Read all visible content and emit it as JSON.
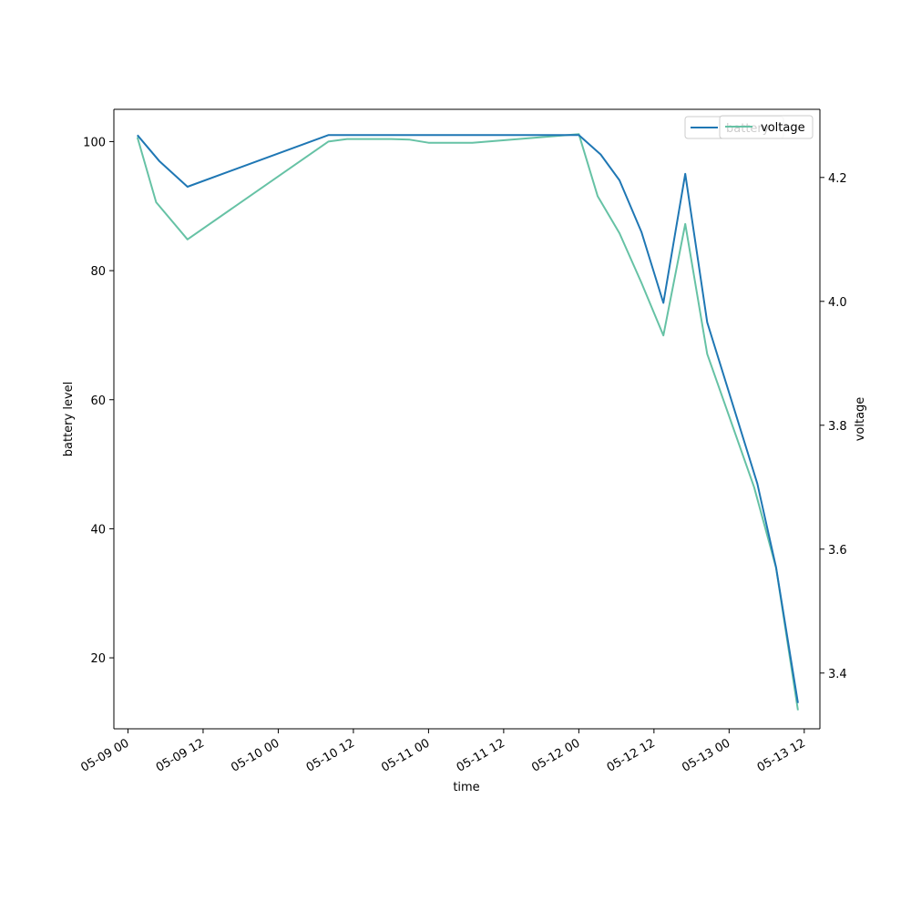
{
  "chart_data": {
    "type": "line",
    "xlabel": "time",
    "ylabel_left": "battery level",
    "ylabel_right": "voltage",
    "x_ticks": [
      "05-09 00",
      "05-09 12",
      "05-10 00",
      "05-10 12",
      "05-11 00",
      "05-11 12",
      "05-12 00",
      "05-12 12",
      "05-13 00",
      "05-13 12"
    ],
    "xlim": [
      "2021-05-08T21:45",
      "2021-05-13T14:30"
    ],
    "ylim_left": [
      9,
      105
    ],
    "ylim_right": [
      3.31,
      4.31
    ],
    "y_ticks_left": [
      20,
      40,
      60,
      80,
      100
    ],
    "y_ticks_right": [
      3.4,
      3.6,
      3.8,
      4.0,
      4.2
    ],
    "grid": false,
    "legend": {
      "placement": "top-right",
      "entries": [
        "battery",
        "voltage"
      ]
    },
    "colors": {
      "battery": "#1f77b4",
      "voltage": "#66c2a5"
    },
    "series": [
      {
        "name": "battery",
        "axis": "left",
        "points": [
          [
            "2021-05-09T01:30",
            101
          ],
          [
            "2021-05-09T05:00",
            97
          ],
          [
            "2021-05-09T09:30",
            93
          ],
          [
            "2021-05-10T08:00",
            101
          ],
          [
            "2021-05-10T12:00",
            101
          ],
          [
            "2021-05-11T00:00",
            101
          ],
          [
            "2021-05-11T12:00",
            101
          ],
          [
            "2021-05-12T00:00",
            101
          ],
          [
            "2021-05-12T03:30",
            98
          ],
          [
            "2021-05-12T06:30",
            94
          ],
          [
            "2021-05-12T10:00",
            86
          ],
          [
            "2021-05-12T13:30",
            75
          ],
          [
            "2021-05-12T17:00",
            95
          ],
          [
            "2021-05-12T20:30",
            72
          ],
          [
            "2021-05-13T04:30",
            47
          ],
          [
            "2021-05-13T07:30",
            34
          ],
          [
            "2021-05-13T11:00",
            13
          ]
        ]
      },
      {
        "name": "voltage",
        "axis": "right",
        "points": [
          [
            "2021-05-09T01:30",
            4.265
          ],
          [
            "2021-05-09T04:30",
            4.16
          ],
          [
            "2021-05-09T09:30",
            4.1
          ],
          [
            "2021-05-10T08:00",
            4.258
          ],
          [
            "2021-05-10T11:00",
            4.262
          ],
          [
            "2021-05-10T18:00",
            4.262
          ],
          [
            "2021-05-10T21:00",
            4.261
          ],
          [
            "2021-05-11T00:00",
            4.256
          ],
          [
            "2021-05-11T07:00",
            4.256
          ],
          [
            "2021-05-12T00:00",
            4.27
          ],
          [
            "2021-05-12T03:00",
            4.17
          ],
          [
            "2021-05-12T06:30",
            4.11
          ],
          [
            "2021-05-12T10:00",
            4.03
          ],
          [
            "2021-05-12T13:30",
            3.945
          ],
          [
            "2021-05-12T17:00",
            4.125
          ],
          [
            "2021-05-12T20:30",
            3.915
          ],
          [
            "2021-05-13T04:00",
            3.7
          ],
          [
            "2021-05-13T07:30",
            3.57
          ],
          [
            "2021-05-13T11:00",
            3.34
          ]
        ]
      }
    ]
  }
}
